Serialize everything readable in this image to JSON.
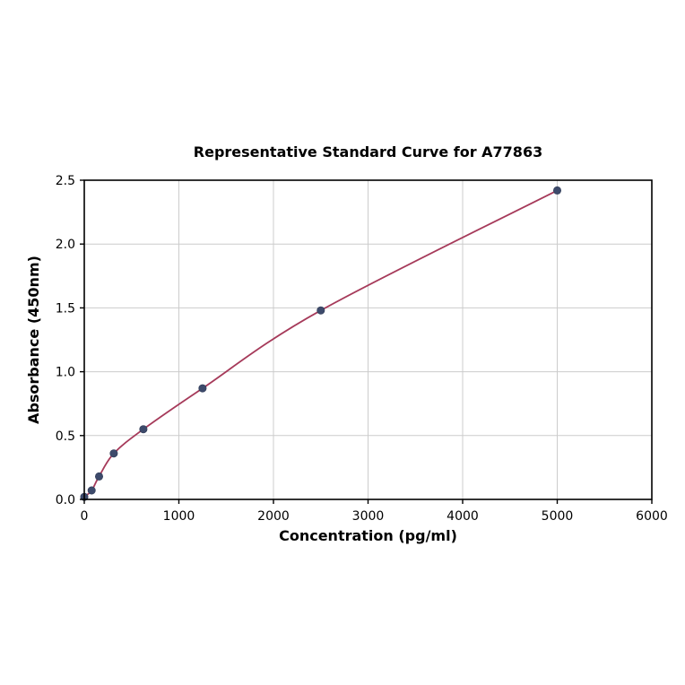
{
  "chart_data": {
    "type": "scatter",
    "title": "Representative Standard Curve for A77863",
    "xlabel": "Concentration (pg/ml)",
    "ylabel": "Absorbance (450nm)",
    "xlim": [
      0,
      6000
    ],
    "ylim": [
      0,
      2.5
    ],
    "x_ticks": [
      0,
      1000,
      2000,
      3000,
      4000,
      5000,
      6000
    ],
    "x_tick_labels": [
      "0",
      "1000",
      "2000",
      "3000",
      "4000",
      "5000",
      "6000"
    ],
    "y_ticks": [
      0,
      0.5,
      1.0,
      1.5,
      2.0,
      2.5
    ],
    "y_tick_labels": [
      "0.0",
      "0.5",
      "1.0",
      "1.5",
      "2.0",
      "2.5"
    ],
    "grid": true,
    "legend": "none",
    "points": [
      {
        "x": 0,
        "y": 0.02
      },
      {
        "x": 78,
        "y": 0.07
      },
      {
        "x": 156,
        "y": 0.18
      },
      {
        "x": 312,
        "y": 0.36
      },
      {
        "x": 625,
        "y": 0.55
      },
      {
        "x": 1250,
        "y": 0.87
      },
      {
        "x": 2500,
        "y": 1.48
      },
      {
        "x": 5000,
        "y": 2.42
      }
    ],
    "curve_color": "#a63a5a",
    "point_color": "#3d4a6b",
    "point_edge_color": "#2e3a55",
    "grid_color": "#cccccc",
    "axis_color": "#000000"
  }
}
